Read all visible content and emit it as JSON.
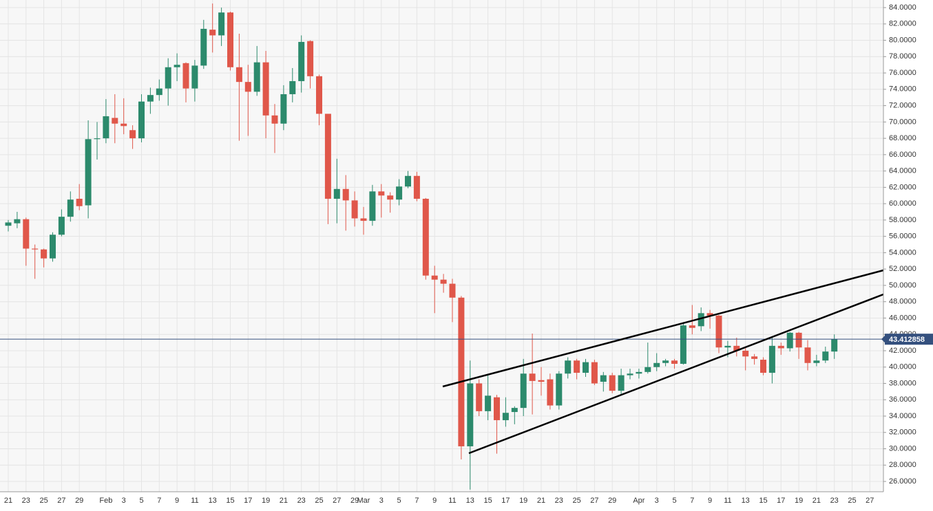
{
  "chart_data": {
    "type": "candlestick",
    "categories": [
      "21",
      null,
      "23",
      null,
      "25",
      null,
      "27",
      null,
      "29",
      null,
      null,
      "Feb",
      null,
      "3",
      null,
      "5",
      null,
      "7",
      null,
      "9",
      null,
      "11",
      null,
      "13",
      null,
      "15",
      null,
      "17",
      null,
      "19",
      null,
      "21",
      null,
      "23",
      null,
      "25",
      null,
      "27",
      null,
      "29",
      "Mar",
      null,
      "3",
      null,
      "5",
      null,
      "7",
      null,
      "9",
      null,
      "11",
      null,
      "13",
      null,
      "15",
      null,
      "17",
      null,
      "19",
      null,
      "21",
      null,
      "23",
      null,
      "25",
      null,
      "27",
      null,
      "29",
      null,
      null,
      "Apr",
      null,
      "3",
      null,
      "5",
      null,
      "7",
      null,
      "9",
      null,
      "11",
      null,
      "13",
      null,
      "15",
      null,
      "17",
      null,
      "19",
      null,
      "21",
      null,
      "23",
      null,
      "25",
      null,
      "27"
    ],
    "open": [
      57.3,
      57.6,
      58.1,
      54.5,
      54.4,
      53.3,
      56.2,
      58.4,
      60.6,
      59.8,
      67.9,
      68.0,
      70.5,
      69.8,
      69.0,
      68.0,
      72.5,
      73.3,
      74.1,
      76.7,
      77.2,
      74.1,
      76.9,
      81.3,
      80.6,
      83.4,
      76.7,
      74.9,
      73.7,
      77.3,
      70.8,
      69.8,
      73.4,
      75.0,
      79.9,
      75.6,
      71.0,
      60.6,
      61.8,
      60.4,
      58.2,
      57.9,
      61.5,
      61.0,
      60.5,
      62.1,
      63.4,
      60.6,
      51.2,
      50.7,
      50.2,
      48.5,
      30.3,
      38.0,
      34.6,
      36.3,
      33.5,
      34.5,
      35.0,
      39.2,
      38.4,
      38.5,
      35.3,
      39.2,
      40.8,
      39.3,
      40.6,
      38.2,
      39.0,
      37.1,
      39.0,
      39.2,
      39.4,
      40.0,
      40.5,
      40.8,
      40.4,
      45.1,
      45.0,
      46.6,
      46.3,
      42.4,
      42.6,
      42.0,
      41.3,
      40.9,
      39.3,
      42.6,
      42.3,
      44.2,
      42.4,
      40.5,
      40.8,
      41.9,
      null,
      null,
      null,
      null
    ],
    "high": [
      58.0,
      59.0,
      58.3,
      55.0,
      54.5,
      56.5,
      59.3,
      61.5,
      62.4,
      70.2,
      70.0,
      72.8,
      73.4,
      72.9,
      69.6,
      73.4,
      74.2,
      75.2,
      77.8,
      78.4,
      77.3,
      77.6,
      82.5,
      84.5,
      84.0,
      83.5,
      80.8,
      77.0,
      79.3,
      78.7,
      72.2,
      74.5,
      76.6,
      80.6,
      80.0,
      75.8,
      71.0,
      65.5,
      63.5,
      61.5,
      59.6,
      62.3,
      62.4,
      61.4,
      63.0,
      64.0,
      63.9,
      60.7,
      52.4,
      51.4,
      50.8,
      48.7,
      40.8,
      38.5,
      39.0,
      36.6,
      36.3,
      35.2,
      41.0,
      44.1,
      40.0,
      39.2,
      39.5,
      41.2,
      41.0,
      41.0,
      40.9,
      39.4,
      39.3,
      39.8,
      39.8,
      39.8,
      43.0,
      41.7,
      41.0,
      41.0,
      45.5,
      47.6,
      47.3,
      47.0,
      46.4,
      43.2,
      43.6,
      42.3,
      41.6,
      41.2,
      43.6,
      43.0,
      44.3,
      44.3,
      43.3,
      41.5,
      42.5,
      44.0,
      null,
      null,
      null,
      null
    ],
    "low": [
      56.6,
      57.0,
      52.4,
      50.8,
      52.2,
      52.9,
      56.0,
      57.8,
      59.2,
      58.2,
      65.4,
      67.4,
      67.4,
      68.5,
      66.7,
      67.5,
      71.0,
      72.6,
      72.0,
      75.0,
      72.4,
      72.5,
      76.5,
      78.5,
      79.3,
      76.3,
      67.7,
      68.3,
      73.2,
      68.0,
      66.2,
      69.0,
      72.4,
      73.6,
      74.1,
      69.6,
      57.5,
      57.6,
      56.7,
      57.2,
      56.2,
      57.3,
      58.3,
      58.9,
      59.8,
      61.9,
      60.3,
      50.7,
      46.6,
      49.1,
      45.5,
      28.7,
      25.0,
      34.0,
      33.5,
      29.4,
      32.7,
      33.0,
      34.0,
      34.2,
      36.5,
      34.8,
      34.8,
      38.6,
      38.5,
      38.8,
      37.8,
      37.0,
      36.8,
      36.7,
      38.5,
      38.6,
      39.2,
      39.5,
      40.1,
      39.8,
      40.3,
      44.0,
      44.4,
      44.7,
      41.7,
      41.2,
      41.3,
      39.6,
      40.3,
      39.0,
      38.0,
      41.5,
      41.9,
      41.0,
      39.6,
      40.1,
      40.5,
      41.0,
      null,
      null,
      null,
      null
    ],
    "close": [
      57.7,
      58.1,
      54.5,
      54.4,
      53.3,
      56.2,
      58.4,
      60.5,
      59.7,
      67.9,
      68.0,
      70.7,
      69.8,
      69.5,
      68.0,
      72.5,
      73.3,
      74.1,
      76.7,
      77.0,
      74.1,
      76.9,
      81.4,
      80.6,
      83.4,
      76.7,
      74.9,
      73.7,
      77.3,
      70.8,
      69.8,
      73.4,
      75.0,
      79.8,
      75.6,
      71.0,
      60.6,
      61.8,
      60.4,
      58.2,
      57.9,
      61.5,
      61.0,
      60.5,
      62.1,
      63.4,
      60.6,
      51.2,
      50.7,
      50.2,
      48.5,
      30.3,
      38.0,
      34.6,
      36.5,
      33.5,
      34.4,
      35.0,
      39.2,
      38.3,
      38.2,
      35.3,
      39.2,
      40.8,
      39.3,
      40.6,
      38.0,
      39.0,
      37.1,
      39.0,
      39.2,
      39.4,
      40.0,
      40.5,
      40.8,
      40.4,
      45.1,
      44.8,
      46.6,
      46.3,
      42.4,
      42.6,
      42.0,
      41.3,
      41.0,
      39.3,
      42.6,
      42.3,
      44.2,
      42.4,
      40.5,
      40.8,
      41.9,
      43.4,
      null,
      null,
      null,
      null
    ],
    "up_color": "#2c8a6c",
    "down_color": "#e0574a",
    "ylim": [
      24.74,
      84.93
    ],
    "yticks": [
      {
        "value": 26,
        "label": "26.0000"
      },
      {
        "value": 28,
        "label": "28.0000"
      },
      {
        "value": 30,
        "label": "30.0000"
      },
      {
        "value": 32,
        "label": "32.0000"
      },
      {
        "value": 34,
        "label": "34.0000"
      },
      {
        "value": 36,
        "label": "36.0000"
      },
      {
        "value": 38,
        "label": "38.0000"
      },
      {
        "value": 40,
        "label": "40.0000"
      },
      {
        "value": 42,
        "label": "42.0000"
      },
      {
        "value": 44,
        "label": "44.0000"
      },
      {
        "value": 46,
        "label": "46.0000"
      },
      {
        "value": 48,
        "label": "48.0000"
      },
      {
        "value": 50,
        "label": "50.0000"
      },
      {
        "value": 52,
        "label": "52.0000"
      },
      {
        "value": 54,
        "label": "54.0000"
      },
      {
        "value": 56,
        "label": "56.0000"
      },
      {
        "value": 58,
        "label": "58.0000"
      },
      {
        "value": 60,
        "label": "60.0000"
      },
      {
        "value": 62,
        "label": "62.0000"
      },
      {
        "value": 64,
        "label": "64.0000"
      },
      {
        "value": 66,
        "label": "66.0000"
      },
      {
        "value": 68,
        "label": "68.0000"
      },
      {
        "value": 70,
        "label": "70.0000"
      },
      {
        "value": 72,
        "label": "72.0000"
      },
      {
        "value": 74,
        "label": "74.0000"
      },
      {
        "value": 76,
        "label": "76.0000"
      },
      {
        "value": 78,
        "label": "78.0000"
      },
      {
        "value": 80,
        "label": "80.0000"
      },
      {
        "value": 82,
        "label": "82.0000"
      },
      {
        "value": 84,
        "label": "84.0000"
      }
    ],
    "grid": true,
    "current_price": 43.412858,
    "current_price_color": "#34507e"
  }
}
